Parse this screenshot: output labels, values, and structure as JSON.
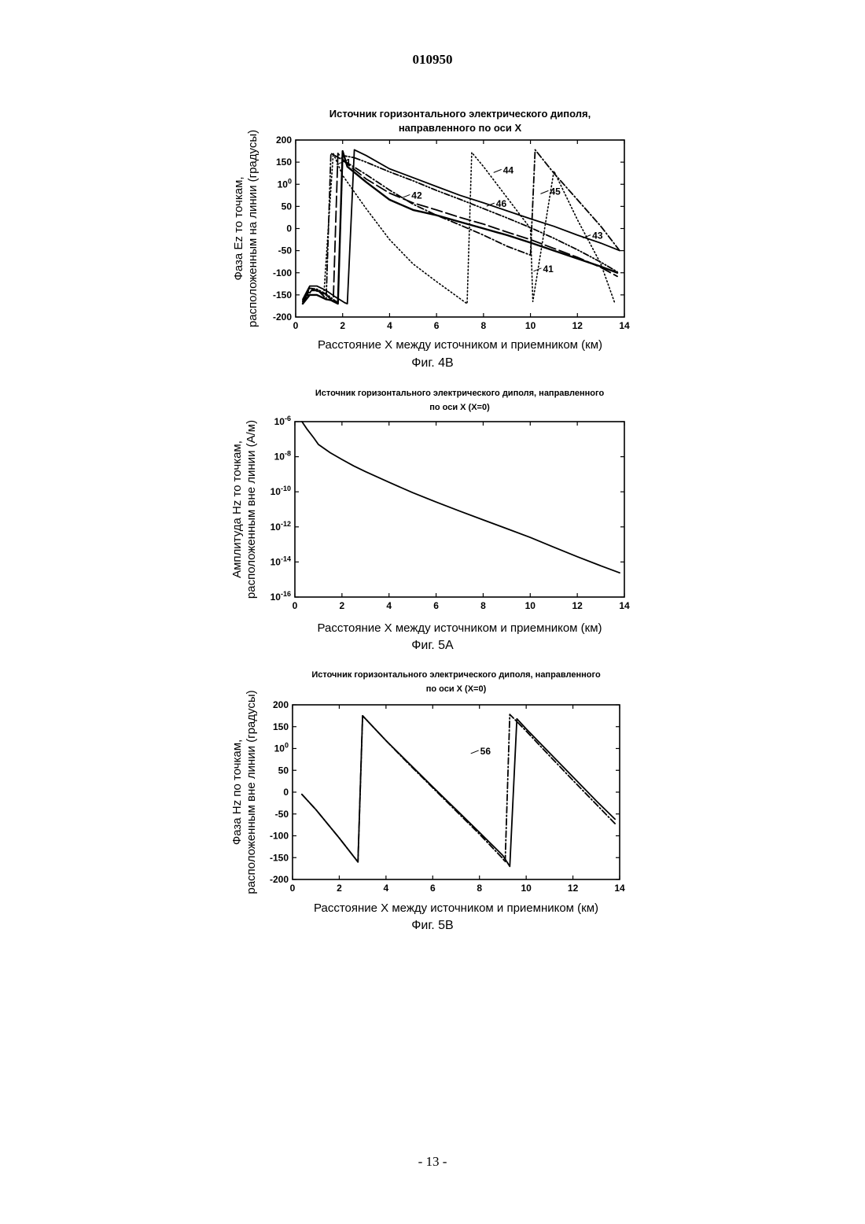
{
  "page": {
    "doc_number": "010950",
    "page_number": "- 13 -"
  },
  "chart_data": [
    {
      "id": "fig4b",
      "type": "line",
      "caption": "Фиг. 4B",
      "title_lines": [
        "Источник горизонтального электрического диполя,",
        "направленного по оси X"
      ],
      "xlabel": "Расстояние X между источником и приемником (км)",
      "ylabel_lines": [
        "Фаза Ez то точкам,",
        "расположенным на линии (градусы)"
      ],
      "xlim": [
        0,
        14
      ],
      "ylim": [
        -200,
        200
      ],
      "xticks": [
        "0",
        "2",
        "4",
        "6",
        "8",
        "10",
        "12",
        "14"
      ],
      "yticks": [
        "200",
        "150",
        "100",
        "50",
        "0",
        "-50",
        "-100",
        "-150",
        "-200"
      ],
      "grid": false,
      "series": [
        {
          "name": "41",
          "style": "solid-heavy",
          "x": [
            0.3,
            0.6,
            0.9,
            1.3,
            1.5,
            1.8,
            2.0,
            2.2,
            3.0,
            4.0,
            5.0,
            6.0,
            7.0,
            8.0,
            9.0,
            10.0,
            11.0,
            12.0,
            13.0,
            13.7
          ],
          "y": [
            -170,
            -150,
            -150,
            -160,
            -162,
            -170,
            175,
            140,
            105,
            65,
            42,
            30,
            15,
            0,
            -15,
            -32,
            -50,
            -68,
            -86,
            -100
          ]
        },
        {
          "name": "42",
          "style": "long-dash",
          "x": [
            0.3,
            0.6,
            0.9,
            1.3,
            1.6,
            1.8,
            2.1,
            3.0,
            4.0,
            5.0,
            6.0,
            7.0,
            8.0,
            9.0,
            10.0,
            11.0,
            12.0,
            13.0,
            13.7
          ],
          "y": [
            -165,
            -140,
            -140,
            -150,
            -165,
            170,
            150,
            112,
            80,
            58,
            42,
            25,
            10,
            -8,
            -25,
            -45,
            -65,
            -88,
            -108
          ]
        },
        {
          "name": "43",
          "style": "solid",
          "x": [
            0.3,
            0.6,
            0.9,
            1.3,
            1.7,
            2.1,
            2.2,
            2.5,
            3.0,
            4.0,
            5.0,
            6.0,
            7.0,
            8.0,
            9.0,
            10.0,
            11.0,
            12.0,
            13.0,
            13.8
          ],
          "y": [
            -160,
            -130,
            -130,
            -140,
            -155,
            -168,
            -170,
            178,
            165,
            135,
            115,
            95,
            75,
            58,
            40,
            22,
            5,
            -15,
            -33,
            -50
          ]
        },
        {
          "name": "44",
          "style": "dotted",
          "x": [
            0.3,
            0.6,
            1.0,
            1.2,
            1.6,
            2.0,
            3.0,
            4.0,
            5.0,
            6.0,
            7.3,
            7.5,
            8.0,
            9.0,
            10.0,
            10.1,
            11.0,
            12.0,
            13.0,
            13.6
          ],
          "y": [
            -165,
            -135,
            -140,
            -150,
            170,
            120,
            45,
            -25,
            -80,
            -120,
            -170,
            172,
            140,
            70,
            0,
            -165,
            130,
            20,
            -80,
            -170
          ]
        },
        {
          "name": "45",
          "style": "dash-dot",
          "x": [
            0.3,
            0.7,
            1.0,
            1.3,
            1.5,
            2.0,
            3.0,
            4.0,
            5.0,
            6.0,
            7.0,
            8.0,
            9.0,
            10.0,
            10.2,
            11.0,
            12.0,
            13.0,
            13.8
          ],
          "y": [
            -168,
            -138,
            -143,
            -158,
            170,
            155,
            122,
            87,
            55,
            30,
            8,
            -15,
            -40,
            -60,
            178,
            125,
            65,
            5,
            -50
          ]
        },
        {
          "name": "46",
          "style": "dash-dot-dot",
          "x": [
            0.3,
            0.6,
            0.9,
            1.3,
            1.8,
            2.0,
            2.5,
            3.0,
            4.0,
            5.0,
            6.0,
            7.0,
            8.0,
            9.0,
            10.0,
            11.0,
            12.0,
            13.0,
            13.7
          ],
          "y": [
            -163,
            -135,
            -137,
            -148,
            -168,
            165,
            160,
            150,
            128,
            108,
            86,
            66,
            45,
            24,
            2,
            -22,
            -48,
            -76,
            -98
          ]
        }
      ],
      "callouts": [
        {
          "label": "44",
          "x": 8.9,
          "y": 130
        },
        {
          "label": "45",
          "x": 10.9,
          "y": 82
        },
        {
          "label": "46",
          "x": 8.6,
          "y": 54
        },
        {
          "label": "42",
          "x": 5.0,
          "y": 73
        },
        {
          "label": "43",
          "x": 12.7,
          "y": -18
        },
        {
          "label": "41",
          "x": 10.6,
          "y": -93
        },
        {
          "label": "1",
          "x": 2.2,
          "y": 148
        }
      ]
    },
    {
      "id": "fig5a",
      "type": "line",
      "caption": "Фиг. 5A",
      "title_lines": [
        "Источник горизонтального электрического диполя, направленного",
        "по оси X (X=0)"
      ],
      "xlabel": "Расстояние X между источником и приемником (км)",
      "ylabel_lines": [
        "Амплитуда Hz то точкам,",
        "расположенным вне линии (А/м)"
      ],
      "xlim": [
        0,
        14
      ],
      "yscale": "log",
      "ylim": [
        1e-16,
        1e-06
      ],
      "xticks": [
        "0",
        "2",
        "4",
        "6",
        "8",
        "10",
        "12",
        "14"
      ],
      "yticks": [
        "10-6",
        "10-8",
        "10-10",
        "10-12",
        "10-14",
        "10-16"
      ],
      "grid": false,
      "series": [
        {
          "name": "",
          "style": "solid",
          "x": [
            0.3,
            0.5,
            0.8,
            1.0,
            1.5,
            2.0,
            2.5,
            3.0,
            4.0,
            5.0,
            6.0,
            7.0,
            8.0,
            9.0,
            10.0,
            11.0,
            12.0,
            13.0,
            13.8
          ],
          "y": [
            1e-06,
            4e-07,
            1.2e-07,
            5e-08,
            1.7e-08,
            7e-09,
            3e-09,
            1.4e-09,
            3.5e-10,
            9e-11,
            2.6e-11,
            8e-12,
            2.5e-12,
            8e-13,
            2.5e-13,
            7e-14,
            2e-14,
            6e-15,
            2.4e-15
          ]
        }
      ]
    },
    {
      "id": "fig5b",
      "type": "line",
      "caption": "Фиг. 5B",
      "title_lines": [
        "Источник горизонтального электрического диполя, направленного",
        "по оси X (X=0)"
      ],
      "xlabel": "Расстояние X между источником и приемником (км)",
      "ylabel_lines": [
        "Фаза Hz по точкам,",
        "расположенным вне линии (градусы)"
      ],
      "xlim": [
        0,
        14
      ],
      "ylim": [
        -200,
        200
      ],
      "xticks": [
        "0",
        "2",
        "4",
        "6",
        "8",
        "10",
        "12",
        "14"
      ],
      "yticks": [
        "200",
        "150",
        "100",
        "50",
        "0",
        "-50",
        "-100",
        "-150",
        "-200"
      ],
      "grid": false,
      "series": [
        {
          "name": "",
          "style": "solid",
          "x": [
            0.4,
            1.0,
            2.0,
            2.8,
            3.0,
            4.0,
            5.0,
            6.0,
            7.0,
            8.0,
            9.0,
            9.3,
            9.6,
            10.0,
            11.0,
            12.0,
            13.0,
            13.8
          ],
          "y": [
            -5,
            -40,
            -105,
            -160,
            175,
            118,
            65,
            12,
            -40,
            -92,
            -145,
            -170,
            168,
            145,
            90,
            35,
            -20,
            -62
          ]
        },
        {
          "name": "56",
          "style": "dash-dot",
          "x": [
            0.4,
            1.0,
            2.0,
            2.8,
            3.0,
            4.0,
            5.0,
            6.0,
            7.0,
            8.0,
            9.0,
            9.1,
            9.3,
            10.0,
            11.0,
            12.0,
            13.0,
            13.8
          ],
          "y": [
            -5,
            -40,
            -105,
            -160,
            175,
            118,
            63,
            10,
            -43,
            -96,
            -152,
            -160,
            178,
            140,
            83,
            27,
            -28,
            -72
          ]
        }
      ],
      "callouts": [
        {
          "label": "56",
          "x": 8.1,
          "y": 92
        }
      ]
    }
  ]
}
